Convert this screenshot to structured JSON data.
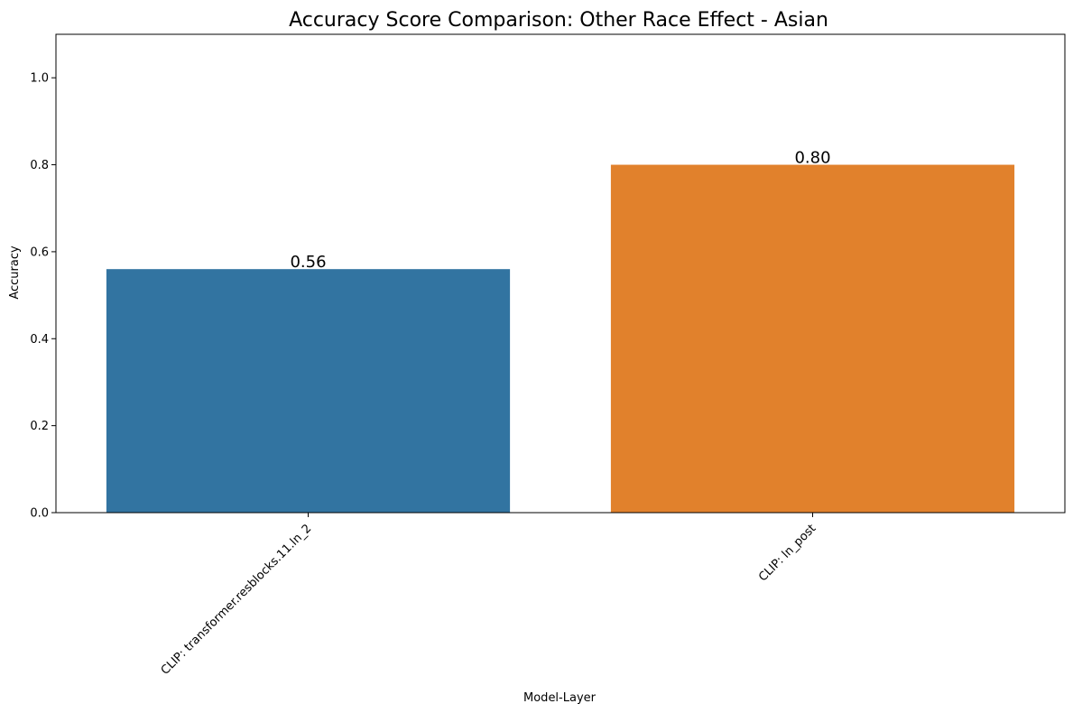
{
  "chart_data": {
    "type": "bar",
    "title": "Accuracy Score Comparison: Other Race Effect - Asian",
    "xlabel": "Model-Layer",
    "ylabel": "Accuracy",
    "categories": [
      "CLIP: transformer.resblocks.11.ln_2",
      "CLIP: ln_post"
    ],
    "values": [
      0.56,
      0.8
    ],
    "data_labels": [
      "0.56",
      "0.80"
    ],
    "colors": [
      "#3274a1",
      "#e1812c"
    ],
    "ylim": [
      0,
      1.1
    ],
    "yticks": [
      0.0,
      0.2,
      0.4,
      0.6,
      0.8,
      1.0
    ],
    "ytick_labels": [
      "0.0",
      "0.2",
      "0.4",
      "0.6",
      "0.8",
      "1.0"
    ],
    "grid": false,
    "legend": "none"
  }
}
